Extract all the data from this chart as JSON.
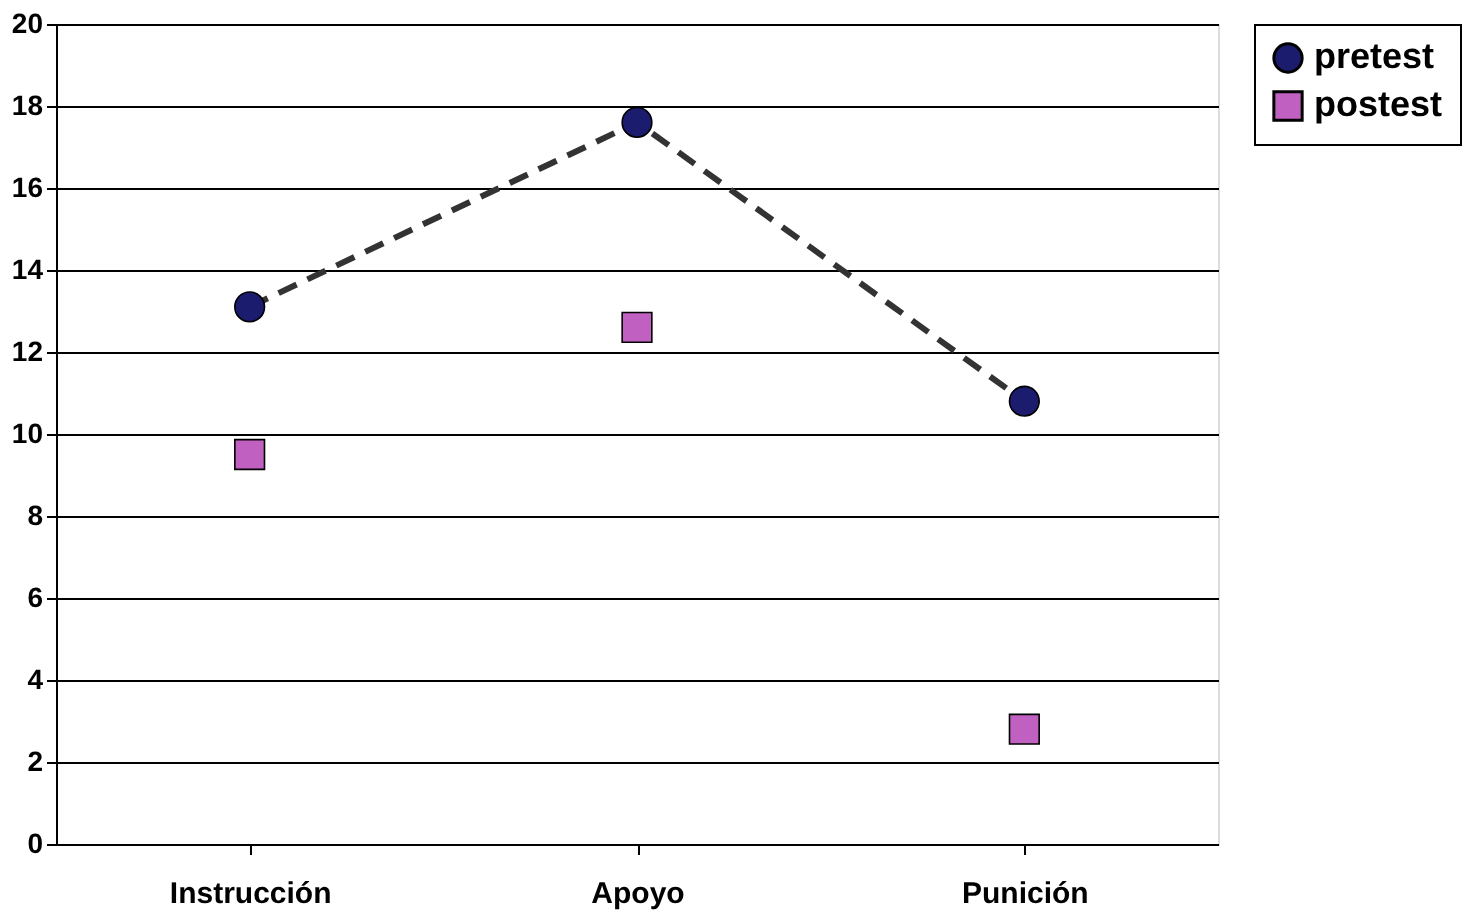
{
  "chart_data": {
    "type": "line",
    "categories": [
      "Instrucción",
      "Apoyo",
      "Punición"
    ],
    "series": [
      {
        "name": "pretest",
        "color": "#1c1c6e",
        "marker": "circle",
        "line_style": "dashed",
        "values": [
          13.1,
          17.6,
          10.8
        ]
      },
      {
        "name": "postest",
        "type": "scatter",
        "color": "#c060c0",
        "marker": "square",
        "values": [
          9.5,
          12.6,
          2.8
        ]
      }
    ],
    "ylim": [
      0,
      20
    ],
    "yticks": [
      0,
      2,
      4,
      6,
      8,
      10,
      12,
      14,
      16,
      18,
      20
    ],
    "grid": "y",
    "legend": "right"
  }
}
